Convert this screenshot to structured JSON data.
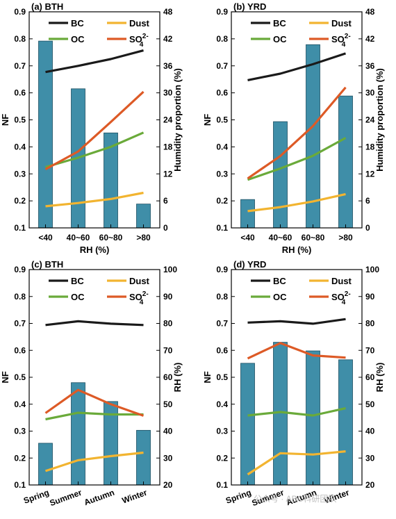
{
  "colors": {
    "BC": "#1a1a1a",
    "OC": "#6aaa3a",
    "Dust": "#f2b430",
    "SO4": "#dd5a26",
    "bar": "#3f8ea8",
    "bar_edge": "#1c4f61"
  },
  "watermark": "公众号 · ABC科研团队",
  "chart_data": [
    {
      "type": "bar+line",
      "title": "(a) BTH",
      "categories": [
        "<40",
        "40~60",
        "60~80",
        ">80"
      ],
      "xlabel": "RH (%)",
      "ylabel": "NF",
      "ylim": [
        0.1,
        0.9
      ],
      "yticks": [
        0.1,
        0.2,
        0.3,
        0.4,
        0.5,
        0.6,
        0.7,
        0.8,
        0.9
      ],
      "y2label": "Humidity proportion (%)",
      "y2lim": [
        0,
        48
      ],
      "y2ticks": [
        0,
        6,
        12,
        18,
        24,
        30,
        36,
        42,
        48
      ],
      "bars": [
        41.5,
        30.9,
        21.1,
        5.3
      ],
      "series": [
        {
          "key": "BC",
          "name": "BC",
          "values": [
            0.677,
            0.7,
            0.725,
            0.757
          ]
        },
        {
          "key": "OC",
          "name": "OC",
          "values": [
            0.325,
            0.36,
            0.4,
            0.453
          ]
        },
        {
          "key": "Dust",
          "name": "Dust",
          "values": [
            0.18,
            0.192,
            0.207,
            0.23
          ]
        },
        {
          "key": "SO4",
          "name": "SO",
          "sub": "4",
          "sup": "2-",
          "values": [
            0.317,
            0.383,
            0.492,
            0.604
          ]
        }
      ],
      "legend": "top"
    },
    {
      "type": "bar+line",
      "title": "(b) YRD",
      "categories": [
        "<40",
        "40~60",
        "60~80",
        ">80"
      ],
      "xlabel": "RH (%)",
      "ylabel": "NF",
      "ylim": [
        0.1,
        0.9
      ],
      "yticks": [
        0.1,
        0.2,
        0.3,
        0.4,
        0.5,
        0.6,
        0.7,
        0.8,
        0.9
      ],
      "y2label": "Humidity proportion (%)",
      "y2lim": [
        0,
        48
      ],
      "y2ticks": [
        0,
        6,
        12,
        18,
        24,
        30,
        36,
        42,
        48
      ],
      "bars": [
        6.3,
        23.6,
        40.7,
        29.3
      ],
      "series": [
        {
          "key": "BC",
          "name": "BC",
          "values": [
            0.647,
            0.671,
            0.706,
            0.746
          ]
        },
        {
          "key": "OC",
          "name": "OC",
          "values": [
            0.278,
            0.32,
            0.367,
            0.433
          ]
        },
        {
          "key": "Dust",
          "name": "Dust",
          "values": [
            0.162,
            0.177,
            0.198,
            0.225
          ]
        },
        {
          "key": "SO4",
          "name": "SO",
          "sub": "4",
          "sup": "2-",
          "values": [
            0.283,
            0.366,
            0.477,
            0.62
          ]
        }
      ],
      "legend": "top"
    },
    {
      "type": "bar+line",
      "title": "(c) BTH",
      "categories": [
        "Spring",
        "Summer",
        "Autumn",
        "Winter"
      ],
      "xlabel": "",
      "ylabel": "NF",
      "ylim": [
        0.1,
        0.9
      ],
      "yticks": [
        0.1,
        0.2,
        0.3,
        0.4,
        0.5,
        0.6,
        0.7,
        0.8,
        0.9
      ],
      "y2label": "RH (%)",
      "y2lim": [
        20,
        100
      ],
      "y2ticks": [
        20,
        30,
        40,
        50,
        60,
        70,
        80,
        90,
        100
      ],
      "bars": [
        35.5,
        58.0,
        51.0,
        40.3
      ],
      "series": [
        {
          "key": "BC",
          "name": "BC",
          "values": [
            0.694,
            0.708,
            0.699,
            0.694
          ]
        },
        {
          "key": "OC",
          "name": "OC",
          "values": [
            0.344,
            0.368,
            0.362,
            0.362
          ]
        },
        {
          "key": "Dust",
          "name": "Dust",
          "values": [
            0.152,
            0.192,
            0.207,
            0.22
          ]
        },
        {
          "key": "SO4",
          "name": "SO",
          "sub": "4",
          "sup": "2-",
          "values": [
            0.367,
            0.453,
            0.4,
            0.357
          ]
        }
      ],
      "legend": "top"
    },
    {
      "type": "bar+line",
      "title": "(d) YRD",
      "categories": [
        "Spring",
        "Summer",
        "Autumn",
        "Winter"
      ],
      "xlabel": "",
      "ylabel": "NF",
      "ylim": [
        0.1,
        0.9
      ],
      "yticks": [
        0.1,
        0.2,
        0.3,
        0.4,
        0.5,
        0.6,
        0.7,
        0.8,
        0.9
      ],
      "y2label": "RH (%)",
      "y2lim": [
        20,
        100
      ],
      "y2ticks": [
        20,
        30,
        40,
        50,
        60,
        70,
        80,
        90,
        100
      ],
      "bars": [
        65.2,
        73.0,
        69.8,
        66.5
      ],
      "series": [
        {
          "key": "BC",
          "name": "BC",
          "values": [
            0.703,
            0.708,
            0.699,
            0.716
          ]
        },
        {
          "key": "OC",
          "name": "OC",
          "values": [
            0.358,
            0.371,
            0.358,
            0.385
          ]
        },
        {
          "key": "Dust",
          "name": "Dust",
          "values": [
            0.139,
            0.218,
            0.213,
            0.225
          ]
        },
        {
          "key": "SO4",
          "name": "SO",
          "sub": "4",
          "sup": "2-",
          "values": [
            0.57,
            0.627,
            0.581,
            0.573
          ]
        }
      ],
      "legend": "top"
    }
  ]
}
